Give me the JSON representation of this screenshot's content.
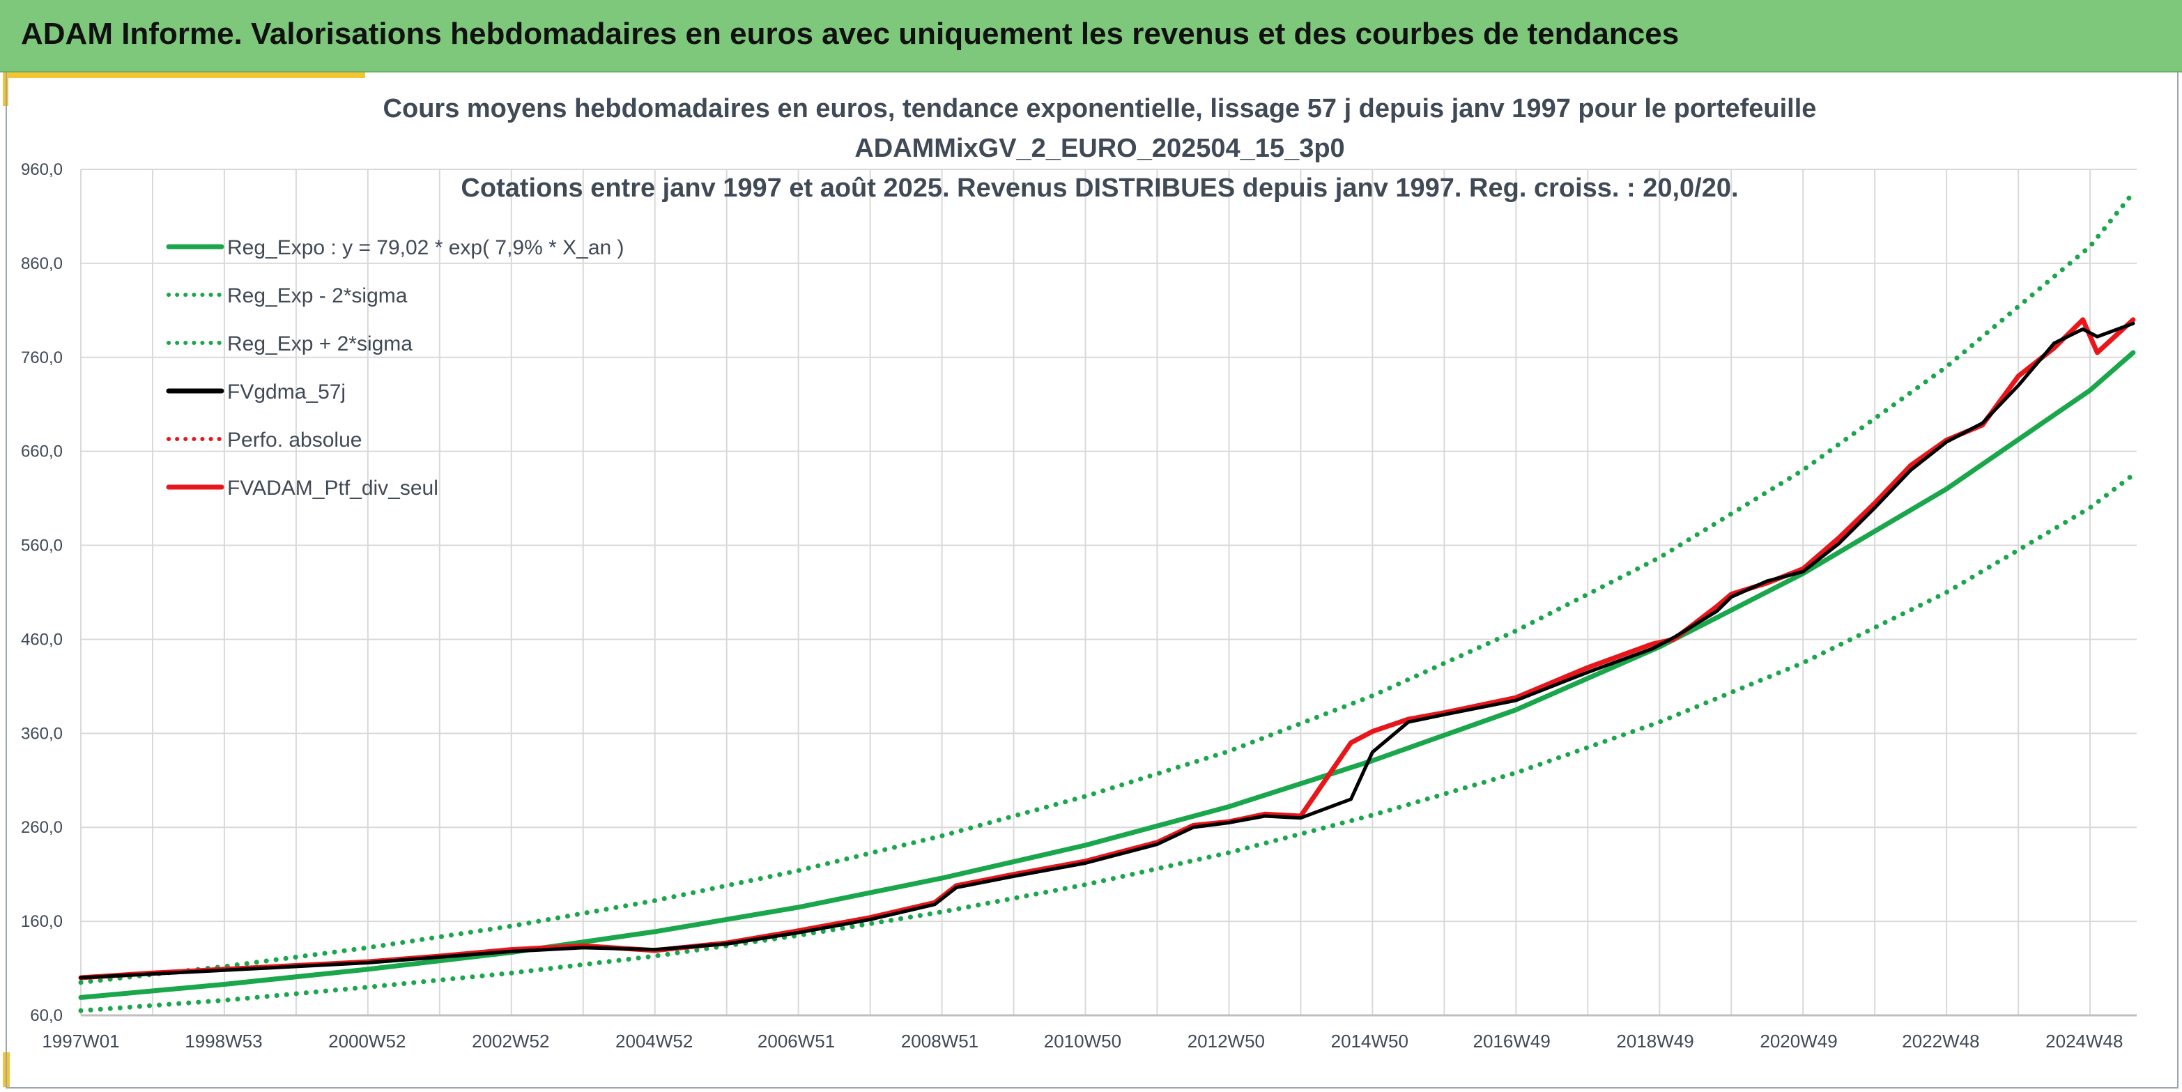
{
  "banner": {
    "title": "ADAM Informe. Valorisations hebdomadaires en euros avec uniquement les revenus et des courbes de tendances"
  },
  "colors": {
    "banner_bg": "#7ec87c",
    "accent": "#f5c431",
    "trend": "#1aa64b",
    "smoothed": "#000000",
    "portfolio": "#e8161b",
    "grid": "#d9d9d9",
    "text": "#404a56"
  },
  "chart_data": {
    "type": "line",
    "title": [
      "Cours moyens hebdomadaires en euros, tendance exponentielle, lissage 57 j depuis janv 1997 pour le portefeuille",
      "ADAMMixGV_2_EURO_202504_15_3p0",
      "Cotations entre janv 1997 et août 2025. Revenus DISTRIBUES depuis janv 1997. Reg. croiss. : 20,0/20."
    ],
    "xlabel": "",
    "ylabel": "",
    "ylim": [
      60,
      960
    ],
    "yticks": [
      "960,0",
      "860,0",
      "760,0",
      "660,0",
      "560,0",
      "460,0",
      "360,0",
      "260,0",
      "160,0",
      "60,0"
    ],
    "xlim": [
      1997.0,
      2025.65
    ],
    "xticks": [
      {
        "x": 1997.0,
        "label": "1997W01"
      },
      {
        "x": 1998.99,
        "label": "1998W53"
      },
      {
        "x": 2000.99,
        "label": "2000W52"
      },
      {
        "x": 2002.99,
        "label": "2002W52"
      },
      {
        "x": 2004.99,
        "label": "2004W52"
      },
      {
        "x": 2006.97,
        "label": "2006W51"
      },
      {
        "x": 2008.97,
        "label": "2008W51"
      },
      {
        "x": 2010.96,
        "label": "2010W50"
      },
      {
        "x": 2012.96,
        "label": "2012W50"
      },
      {
        "x": 2014.96,
        "label": "2014W50"
      },
      {
        "x": 2016.94,
        "label": "2016W49"
      },
      {
        "x": 2018.94,
        "label": "2018W49"
      },
      {
        "x": 2020.94,
        "label": "2020W49"
      },
      {
        "x": 2022.92,
        "label": "2022W48"
      },
      {
        "x": 2024.92,
        "label": "2024W48"
      }
    ],
    "grid": true,
    "legend_position": "top-left",
    "series": [
      {
        "name": "Reg_Expo : y = 79,02 * exp( 7,9% *  X_an )",
        "style": "solid",
        "color": "#1aa64b",
        "x": [
          1997,
          1999,
          2001,
          2003,
          2005,
          2007,
          2009,
          2011,
          2013,
          2015,
          2017,
          2019,
          2021,
          2023,
          2025,
          2025.6
        ],
        "values": [
          79,
          93,
          109,
          127,
          149,
          175,
          206,
          241,
          282,
          331,
          385,
          452,
          530,
          620,
          725,
          765
        ]
      },
      {
        "name": "Reg_Exp - 2*sigma",
        "style": "dotted",
        "color": "#1aa64b",
        "x": [
          1997,
          1999,
          2001,
          2003,
          2005,
          2007,
          2009,
          2011,
          2013,
          2015,
          2017,
          2019,
          2021,
          2023,
          2025,
          2025.6
        ],
        "values": [
          65,
          76,
          90,
          105,
          123,
          145,
          170,
          199,
          233,
          273,
          318,
          372,
          435,
          510,
          600,
          635
        ]
      },
      {
        "name": "Reg_Exp + 2*sigma",
        "style": "dotted",
        "color": "#1aa64b",
        "x": [
          1997,
          1999,
          2001,
          2003,
          2005,
          2007,
          2009,
          2011,
          2013,
          2015,
          2017,
          2019,
          2021,
          2023,
          2025,
          2025.6
        ],
        "values": [
          95,
          112,
          132,
          155,
          182,
          214,
          251,
          293,
          341,
          400,
          469,
          547,
          640,
          750,
          878,
          935
        ]
      },
      {
        "name": "FVgdma_57j",
        "style": "solid",
        "color": "#000000",
        "x": [
          1997,
          1998,
          1999,
          2000,
          2001,
          2002,
          2003,
          2004,
          2005,
          2006,
          2007,
          2008,
          2008.9,
          2009.2,
          2010,
          2011,
          2012,
          2012.5,
          2013,
          2013.5,
          2014,
          2014.7,
          2015,
          2015.5,
          2016,
          2017,
          2018,
          2018.9,
          2019.2,
          2019.8,
          2020,
          2020.5,
          2021,
          2021.5,
          2022,
          2022.5,
          2023,
          2023.5,
          2024,
          2024.5,
          2024.9,
          2025.1,
          2025.6
        ],
        "values": [
          100,
          104,
          108,
          112,
          116,
          122,
          128,
          132,
          130,
          136,
          148,
          162,
          178,
          196,
          208,
          222,
          242,
          260,
          265,
          272,
          270,
          290,
          340,
          372,
          380,
          395,
          425,
          450,
          462,
          490,
          505,
          522,
          532,
          562,
          600,
          640,
          670,
          690,
          730,
          775,
          790,
          782,
          796
        ]
      },
      {
        "name": "Perfo. absolue",
        "style": "dotted",
        "color": "#e8161b",
        "x": [],
        "values": []
      },
      {
        "name": "FVADAM_Ptf_div_seul",
        "style": "solid",
        "color": "#e8161b",
        "x": [
          1997,
          1998,
          1999,
          2000,
          2001,
          2002,
          2003,
          2004,
          2005,
          2006,
          2007,
          2008,
          2008.9,
          2009.2,
          2010,
          2011,
          2012,
          2012.5,
          2013,
          2013.5,
          2014,
          2014.7,
          2015,
          2015.5,
          2016,
          2017,
          2018,
          2018.9,
          2019.2,
          2019.8,
          2020,
          2020.5,
          2021,
          2021.5,
          2022,
          2022.5,
          2023,
          2023.5,
          2024,
          2024.5,
          2024.9,
          2025.1,
          2025.6
        ],
        "values": [
          100,
          105,
          109,
          113,
          117,
          123,
          130,
          134,
          129,
          137,
          150,
          164,
          180,
          198,
          210,
          224,
          244,
          262,
          266,
          274,
          272,
          350,
          362,
          375,
          382,
          398,
          430,
          455,
          460,
          495,
          508,
          520,
          535,
          568,
          605,
          645,
          672,
          688,
          740,
          770,
          800,
          765,
          800
        ]
      }
    ]
  }
}
